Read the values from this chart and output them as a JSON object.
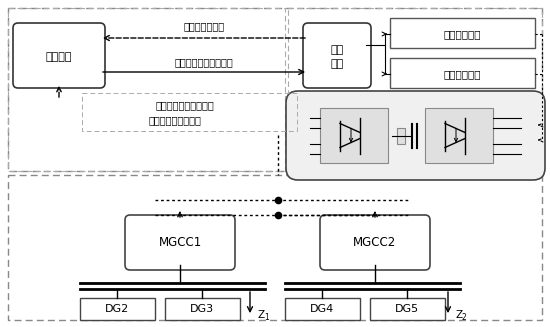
{
  "bg_color": "#ffffff",
  "fig_width": 5.5,
  "fig_height": 3.27,
  "power_ctrl_text": "功率控制",
  "mode_text": "模式\n选择",
  "send_text": "送端控制策略",
  "recv_text": "受端控制策略",
  "label_lianlu_state": "联络线运行状态",
  "label_lianlu_power": "联络线功率计划值设定",
  "label_subnet_state": "子网运行状态电压频率",
  "label_subnet_power": "子网功率参考值设定",
  "mgcc1_text": "MGCC1",
  "mgcc2_text": "MGCC2",
  "dg2_text": "DG2",
  "dg3_text": "DG3",
  "dg4_text": "DG4",
  "dg5_text": "DG5",
  "z1_text": "Z1",
  "z2_text": "Z2"
}
